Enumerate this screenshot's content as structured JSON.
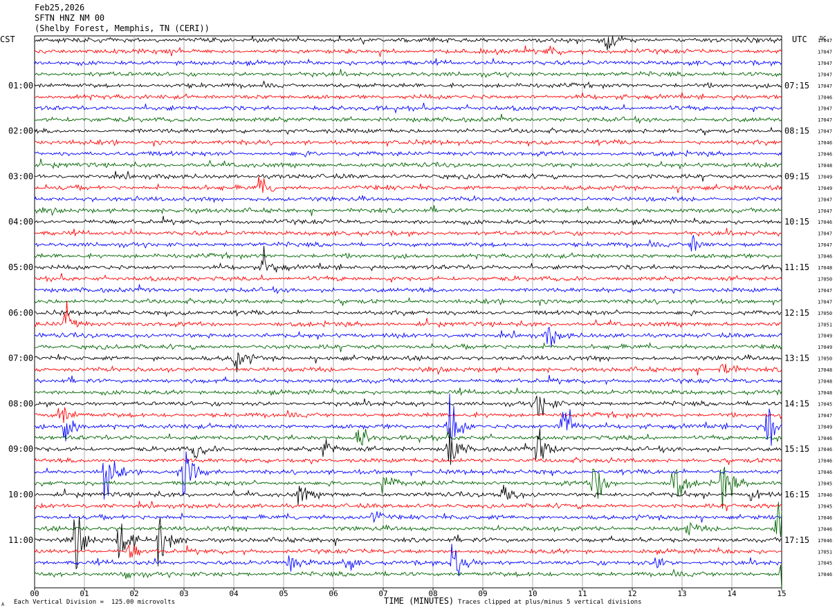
{
  "header": {
    "date": "Feb25,2026",
    "station": "SFTN HNZ NM 00",
    "location": "(Shelby Forest, Memphis, TN (CERI))"
  },
  "left_tz": "CST",
  "right_tz": "UTC",
  "dc_label": "DC",
  "footer": {
    "scale_note": "Each Vertical Division =  125.00 microvolts",
    "xlabel": "TIME (MINUTES)",
    "clip_note": "Traces clipped at plus/minus 5 vertical divisions",
    "corner_mark": "A"
  },
  "colors": {
    "black": "#000000",
    "red": "#ff0000",
    "blue": "#0000ff",
    "green": "#006400",
    "grid": "#999999"
  },
  "chart_data": {
    "type": "line",
    "xlabel": "TIME (MINUTES)",
    "xlim": [
      0,
      15
    ],
    "x_ticks": [
      "00",
      "01",
      "02",
      "03",
      "04",
      "05",
      "06",
      "07",
      "08",
      "09",
      "10",
      "11",
      "12",
      "13",
      "14",
      "15"
    ],
    "trace_count": 48,
    "traces_per_hour": 4,
    "color_cycle": [
      "black",
      "red",
      "blue",
      "green"
    ],
    "left_hour_labels": [
      "01:00",
      "02:00",
      "03:00",
      "04:00",
      "05:00",
      "06:00",
      "07:00",
      "08:00",
      "09:00",
      "10:00",
      "11:00"
    ],
    "right_hour_labels": [
      "07:15",
      "08:15",
      "09:15",
      "10:15",
      "11:15",
      "12:15",
      "13:15",
      "14:15",
      "15:15",
      "16:15",
      "17:15"
    ],
    "dc_offsets": [
      "17047",
      "17047",
      "17047",
      "17047",
      "17047",
      "17046",
      "17047",
      "17047",
      "17047",
      "17046",
      "17046",
      "17048",
      "17049",
      "17049",
      "17047",
      "17047",
      "17046",
      "17047",
      "17047",
      "17046",
      "17048",
      "17050",
      "17047",
      "17047",
      "17050",
      "17051",
      "17049",
      "17049",
      "17050",
      "17048",
      "17048",
      "17048",
      "17045",
      "17047",
      "17049",
      "17046",
      "17046",
      "17046",
      "17046",
      "17045",
      "17046",
      "17045",
      "17046",
      "17046",
      "17046",
      "17051",
      "17045",
      "17046"
    ],
    "events": [
      {
        "trace": 0,
        "minute": 11.5,
        "amp": 1.6
      },
      {
        "trace": 1,
        "minute": 10.3,
        "amp": 0.8
      },
      {
        "trace": 13,
        "minute": 4.5,
        "amp": 2.0
      },
      {
        "trace": 18,
        "minute": 13.2,
        "amp": 1.8
      },
      {
        "trace": 20,
        "minute": 4.6,
        "amp": 2.0
      },
      {
        "trace": 25,
        "minute": 0.6,
        "amp": 2.2
      },
      {
        "trace": 26,
        "minute": 10.3,
        "amp": 1.8
      },
      {
        "trace": 28,
        "minute": 4.0,
        "amp": 2.5
      },
      {
        "trace": 29,
        "minute": 13.8,
        "amp": 1.8
      },
      {
        "trace": 32,
        "minute": 10.1,
        "amp": 3.0
      },
      {
        "trace": 33,
        "minute": 0.5,
        "amp": 2.0
      },
      {
        "trace": 34,
        "minute": 0.6,
        "amp": 2.5
      },
      {
        "trace": 34,
        "minute": 8.3,
        "amp": 4.5
      },
      {
        "trace": 34,
        "minute": 10.6,
        "amp": 4.5
      },
      {
        "trace": 34,
        "minute": 14.7,
        "amp": 4.0
      },
      {
        "trace": 35,
        "minute": 6.5,
        "amp": 2.0
      },
      {
        "trace": 36,
        "minute": 3.2,
        "amp": 1.5
      },
      {
        "trace": 36,
        "minute": 5.8,
        "amp": 1.5
      },
      {
        "trace": 36,
        "minute": 8.3,
        "amp": 3.5
      },
      {
        "trace": 36,
        "minute": 10.1,
        "amp": 3.0
      },
      {
        "trace": 38,
        "minute": 1.4,
        "amp": 4.0
      },
      {
        "trace": 38,
        "minute": 3.0,
        "amp": 4.0
      },
      {
        "trace": 39,
        "minute": 7.0,
        "amp": 1.5
      },
      {
        "trace": 39,
        "minute": 11.2,
        "amp": 4.0
      },
      {
        "trace": 39,
        "minute": 12.8,
        "amp": 4.0
      },
      {
        "trace": 39,
        "minute": 13.8,
        "amp": 4.0
      },
      {
        "trace": 40,
        "minute": 5.3,
        "amp": 1.5
      },
      {
        "trace": 40,
        "minute": 9.4,
        "amp": 1.5
      },
      {
        "trace": 40,
        "minute": 14.4,
        "amp": 1.2
      },
      {
        "trace": 42,
        "minute": 6.8,
        "amp": 1.0
      },
      {
        "trace": 43,
        "minute": 13.1,
        "amp": 1.0
      },
      {
        "trace": 43,
        "minute": 14.9,
        "amp": 4.0
      },
      {
        "trace": 44,
        "minute": 0.8,
        "amp": 4.0
      },
      {
        "trace": 44,
        "minute": 1.7,
        "amp": 4.0
      },
      {
        "trace": 44,
        "minute": 2.5,
        "amp": 4.0
      },
      {
        "trace": 45,
        "minute": 1.9,
        "amp": 1.5
      },
      {
        "trace": 46,
        "minute": 5.1,
        "amp": 1.5
      },
      {
        "trace": 46,
        "minute": 6.2,
        "amp": 1.5
      },
      {
        "trace": 46,
        "minute": 8.4,
        "amp": 4.5
      },
      {
        "trace": 46,
        "minute": 12.5,
        "amp": 1.2
      },
      {
        "trace": 47,
        "minute": 1.8,
        "amp": 1.2
      },
      {
        "trace": 47,
        "minute": 15.0,
        "amp": 4.0
      }
    ]
  }
}
